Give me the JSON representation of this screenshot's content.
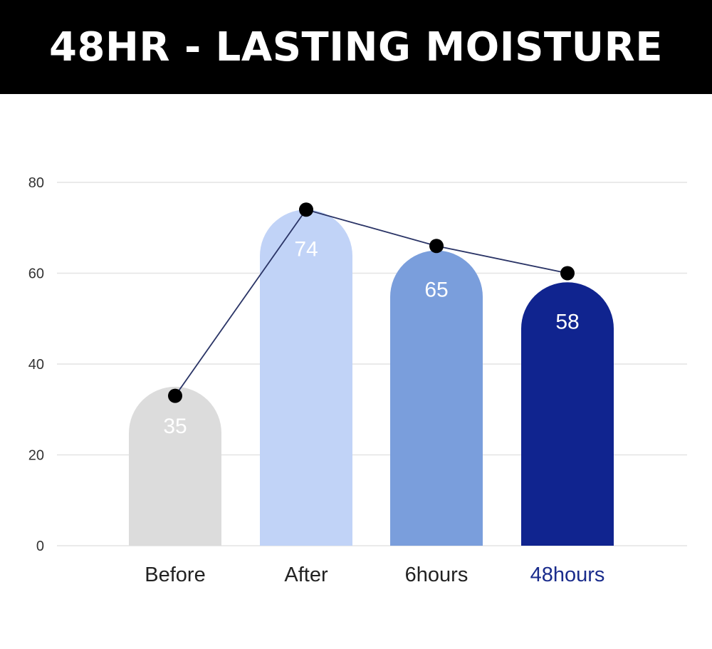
{
  "header": {
    "title": "48HR - LASTING MOISTURE"
  },
  "chart_data": {
    "type": "bar",
    "categories": [
      "Before",
      "After",
      "6hours",
      "48hours"
    ],
    "values": [
      35,
      74,
      65,
      58
    ],
    "line_values": [
      33,
      74,
      66,
      60
    ],
    "ylim": [
      0,
      80
    ],
    "yticks": [
      0,
      20,
      40,
      60,
      80
    ],
    "grid": true,
    "bar_colors": [
      "#dcdcdc",
      "#c1d3f7",
      "#7a9edc",
      "#10248f"
    ],
    "category_label_colors": [
      "#222222",
      "#222222",
      "#222222",
      "#1a2c8c"
    ],
    "line_color": "#2a3466",
    "marker_color": "#000000",
    "value_label_color": "#ffffff"
  }
}
